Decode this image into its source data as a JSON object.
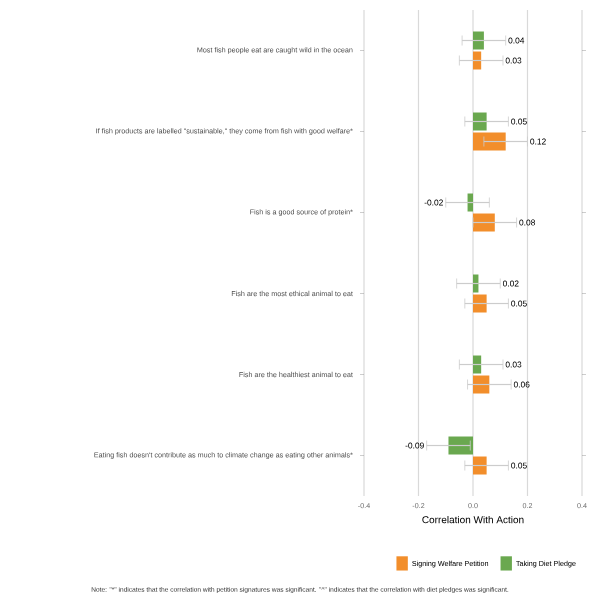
{
  "chart_data": {
    "type": "bar",
    "orientation": "horizontal",
    "categories": [
      "Most fish people eat are caught wild in the ocean",
      "If fish products are labelled \"sustainable,\" they come from fish with good welfare*",
      "Fish is a good source of protein*",
      "Fish are the most ethical animal to eat",
      "Fish are the healthiest animal to eat",
      "Eating fish doesn't contribute as much to climate change as eating other animals*"
    ],
    "series": [
      {
        "name": "Signing Welfare Petition",
        "color": "#f28e2b",
        "values": [
          0.03,
          0.12,
          0.08,
          0.05,
          0.06,
          0.05
        ],
        "errors": [
          0.08,
          0.08,
          0.08,
          0.08,
          0.08,
          0.08
        ],
        "value_labels": [
          "0.03",
          "0.12",
          "0.08",
          "0.05",
          "0.06",
          "0.05"
        ]
      },
      {
        "name": "Taking Diet Pledge",
        "color": "#6aa84f",
        "values": [
          0.04,
          0.05,
          -0.02,
          0.02,
          0.03,
          -0.09
        ],
        "errors": [
          0.08,
          0.08,
          0.08,
          0.08,
          0.08,
          0.08
        ],
        "value_labels": [
          "0.04",
          "0.05",
          "-0.02",
          "0.02",
          "0.03",
          "-0.09"
        ]
      }
    ],
    "xlabel": "Correlation With Action",
    "xlim": [
      -0.4,
      0.4
    ],
    "xticks": [
      -0.4,
      -0.2,
      {
        "value": 0,
        "label": "0.0"
      },
      0.2,
      0.4
    ],
    "grid": "x",
    "legend": "bottom",
    "annotations": [
      "Note: \"*\" indicates that the correlation with petition signatures was significant. \"^\" indicates that the correlation with diet pledges was significant."
    ]
  }
}
